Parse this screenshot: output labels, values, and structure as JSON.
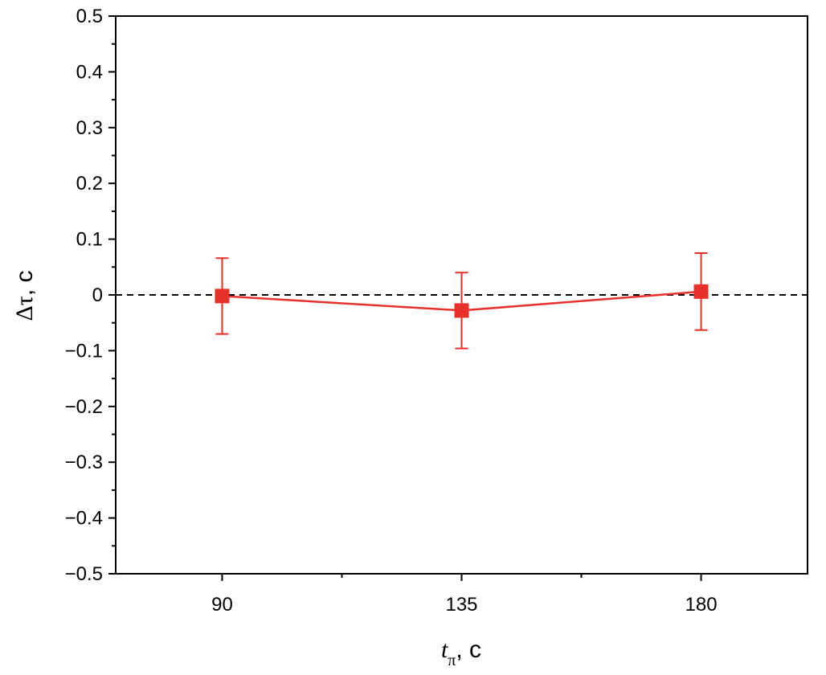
{
  "chart_data": {
    "type": "scatter",
    "x": [
      90,
      135,
      180
    ],
    "x_tick_labels": [
      "90",
      "135",
      "180"
    ],
    "xlim": [
      70,
      200
    ],
    "ylim": [
      -0.5,
      0.5
    ],
    "y_tick_values": [
      -0.5,
      -0.4,
      -0.3,
      -0.2,
      -0.1,
      0,
      0.1,
      0.2,
      0.3,
      0.4,
      0.5
    ],
    "y_tick_labels": [
      "−0.5",
      "−0.4",
      "−0.3",
      "−0.2",
      "−0.1",
      "0",
      "0.1",
      "0.2",
      "0.3",
      "0.4",
      "0.5"
    ],
    "series": [
      {
        "values": [
          -0.002,
          -0.028,
          0.006
        ],
        "error": [
          0.068,
          0.068,
          0.069
        ],
        "color": "#e8302a",
        "marker": "square",
        "line": "solid"
      }
    ],
    "reference_line": {
      "y": 0,
      "style": "dashed",
      "color": "#000000"
    },
    "xlabel": {
      "main": "t",
      "sub": "π",
      "unit": ", c"
    },
    "ylabel": {
      "greek": "Δτ",
      "unit": ", c"
    },
    "grid": false
  }
}
